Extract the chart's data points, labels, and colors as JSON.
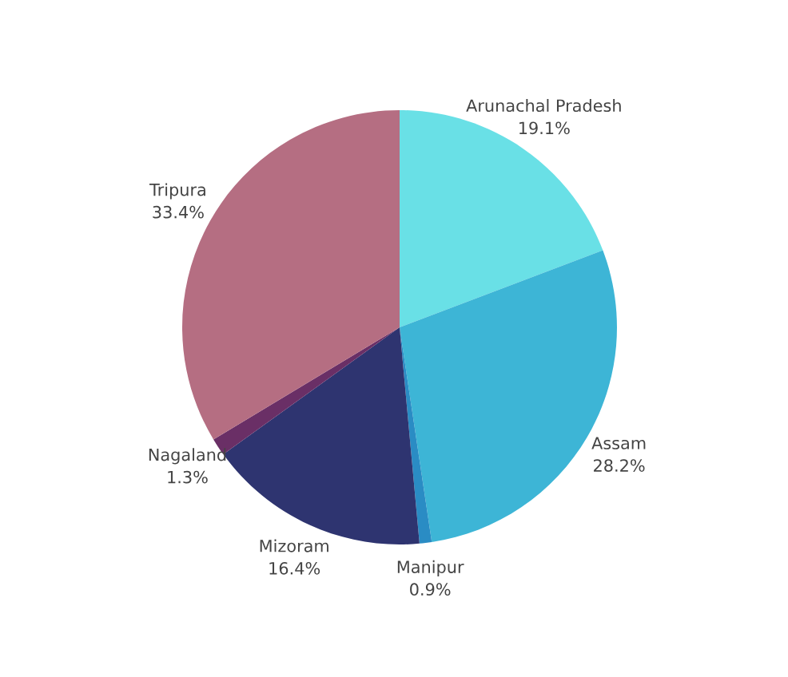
{
  "chart_data": {
    "type": "pie",
    "categories": [
      "Arunachal Pradesh",
      "Assam",
      "Manipur",
      "Mizoram",
      "Nagaland",
      "Tripura"
    ],
    "values": [
      19.1,
      28.2,
      0.9,
      16.4,
      1.3,
      33.4
    ],
    "value_labels": [
      "19.1%",
      "28.2%",
      "0.9%",
      "16.4%",
      "1.3%",
      "33.4%"
    ],
    "colors": [
      "#69e0e6",
      "#3db5d6",
      "#2a8cc4",
      "#2e3470",
      "#6a2f66",
      "#b56e82"
    ],
    "legend": false
  }
}
